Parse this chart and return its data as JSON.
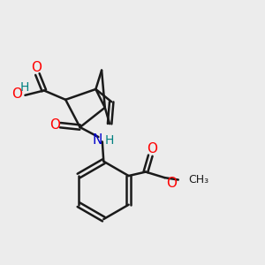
{
  "bg_color": "#ececec",
  "bond_color": "#1a1a1a",
  "oxygen_color": "#ff0000",
  "nitrogen_color": "#0000cc",
  "hydrogen_color": "#008080",
  "line_width": 1.8,
  "fig_size": [
    3.0,
    3.0
  ],
  "dpi": 100,
  "xlim": [
    0,
    10
  ],
  "ylim": [
    0,
    10
  ]
}
